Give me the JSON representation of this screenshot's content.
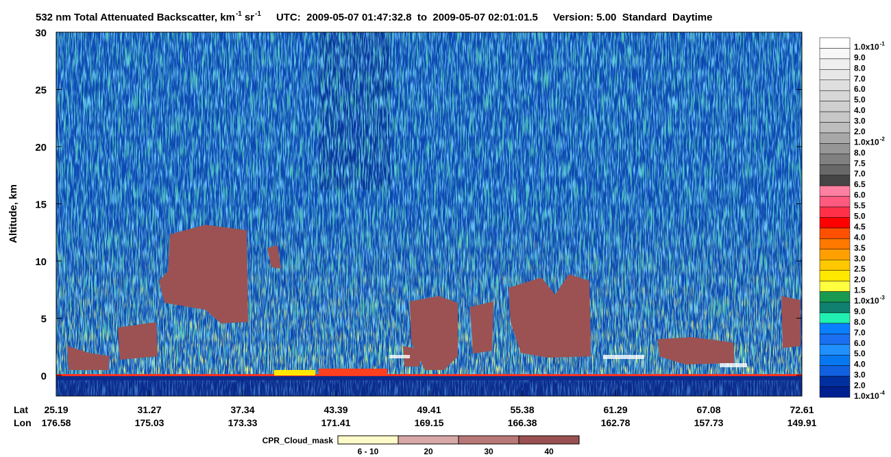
{
  "chart_data": {
    "type": "heatmap",
    "title": {
      "main": "532 nm Total Attenuated Backscatter, km",
      "sup1": "-1",
      "unit2": "sr",
      "sup2": "-1",
      "utc": "UTC:  2009-05-07 01:47:32.8  to  2009-05-07 02:01:01.5",
      "version": "Version: 5.00  Standard  Daytime"
    },
    "y_label": "Altitude, km",
    "ylim": [
      -1.8,
      30
    ],
    "yticks": [
      0,
      5,
      10,
      15,
      20,
      25,
      30
    ],
    "x_rows": [
      {
        "label": "Lat",
        "values": [
          "25.19",
          "31.27",
          "37.34",
          "43.39",
          "49.41",
          "55.38",
          "61.29",
          "67.08",
          "72.61"
        ]
      },
      {
        "label": "Lon",
        "values": [
          "176.58",
          "175.03",
          "173.33",
          "171.41",
          "169.15",
          "166.38",
          "162.78",
          "157.73",
          "149.91"
        ]
      }
    ],
    "colorbar": [
      {
        "text": "1.0x10",
        "sup": "-1",
        "color": "#ffffff"
      },
      {
        "text": "9.0",
        "color": "#f7f7f7"
      },
      {
        "text": "8.0",
        "color": "#efefef"
      },
      {
        "text": "7.0",
        "color": "#e7e7e7"
      },
      {
        "text": "6.0",
        "color": "#dfdfdf"
      },
      {
        "text": "5.0",
        "color": "#d7d7d7"
      },
      {
        "text": "4.0",
        "color": "#cfcfcf"
      },
      {
        "text": "3.0",
        "color": "#c7c7c7"
      },
      {
        "text": "2.0",
        "color": "#bdbdbd"
      },
      {
        "text": "1.0x10",
        "sup": "-2",
        "color": "#a8a8a8"
      },
      {
        "text": "8.0",
        "color": "#969696"
      },
      {
        "text": "7.5",
        "color": "#808080"
      },
      {
        "text": "7.0",
        "color": "#686868"
      },
      {
        "text": "6.5",
        "color": "#444444"
      },
      {
        "text": "6.0",
        "color": "#ff80a0"
      },
      {
        "text": "5.5",
        "color": "#ff5a80"
      },
      {
        "text": "5.0",
        "color": "#ff3048"
      },
      {
        "text": "4.5",
        "color": "#ff0000"
      },
      {
        "text": "4.0",
        "color": "#ff5000"
      },
      {
        "text": "3.5",
        "color": "#ff7800"
      },
      {
        "text": "3.0",
        "color": "#ffa000"
      },
      {
        "text": "2.5",
        "color": "#ffc800"
      },
      {
        "text": "2.0",
        "color": "#ffe800"
      },
      {
        "text": "1.5",
        "color": "#ffff40"
      },
      {
        "text": "1.0x10",
        "sup": "-3",
        "color": "#1a9a50"
      },
      {
        "text": "9.0",
        "color": "#108070"
      },
      {
        "text": "8.0",
        "color": "#20f0b0"
      },
      {
        "text": "7.0",
        "color": "#0a80ff"
      },
      {
        "text": "6.0",
        "color": "#1a70f0"
      },
      {
        "text": "5.0",
        "color": "#2090ff"
      },
      {
        "text": "4.0",
        "color": "#0878f0"
      },
      {
        "text": "3.0",
        "color": "#1060e0"
      },
      {
        "text": "2.0",
        "color": "#0030a0"
      },
      {
        "text": "1.0x10",
        "sup": "-4",
        "color": "#002090"
      }
    ],
    "cloud_mask": {
      "title": "CPR_Cloud_mask",
      "items": [
        {
          "label": "6 - 10",
          "color": "#fffbc8"
        },
        {
          "label": "20",
          "color": "#d8a8a8"
        },
        {
          "label": "30",
          "color": "#b87878"
        },
        {
          "label": "40",
          "color": "#9a5050"
        }
      ]
    }
  }
}
